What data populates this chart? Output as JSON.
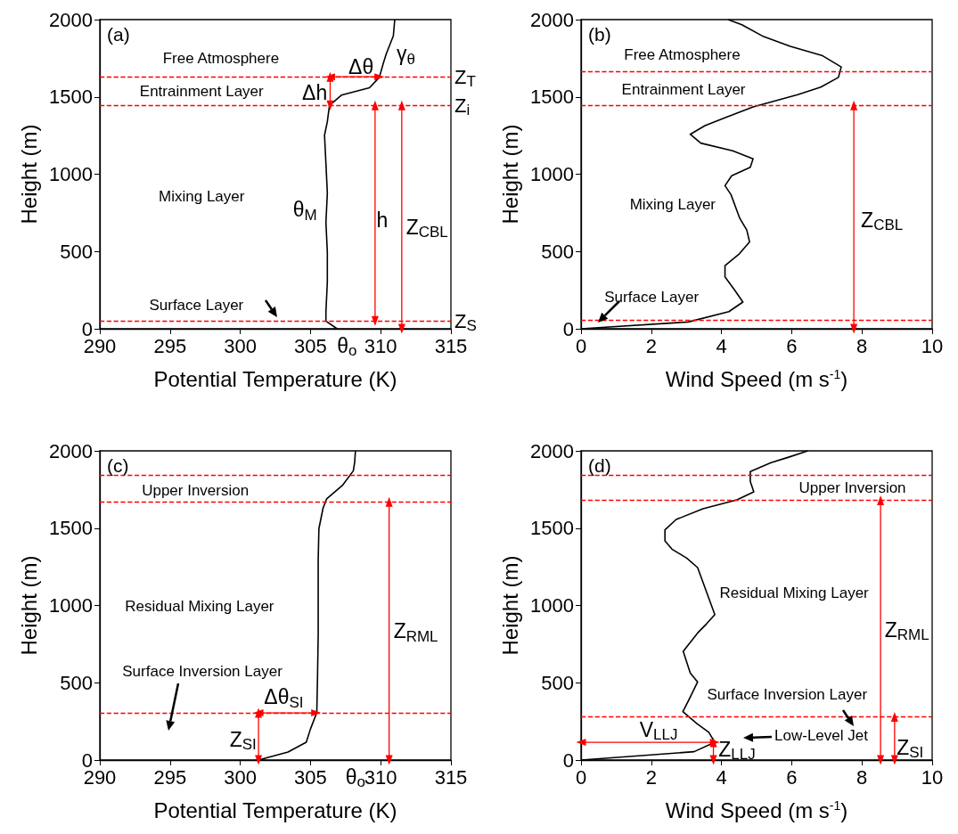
{
  "chart_data": [
    {
      "type": "line",
      "xlabel": "Potential Temperature (K)",
      "ylabel": "Height (m)",
      "xlim": [
        290,
        315
      ],
      "xticks": [
        290,
        295,
        300,
        305,
        310,
        315
      ],
      "ylim": [
        0,
        2000
      ],
      "yticks": [
        0,
        500,
        1000,
        1500,
        2000
      ],
      "series": [
        {
          "color": "#000000",
          "x": [
            311.0,
            310.9,
            310.4,
            310.2,
            309.9,
            309.2,
            307.2,
            306.35,
            306.2,
            306.0,
            306.1,
            306.2,
            306.1,
            306.2,
            306.2,
            306.1,
            306.1,
            306.9
          ],
          "values": [
            2000,
            1895,
            1780,
            1722,
            1626,
            1559,
            1511,
            1444,
            1339,
            1252,
            1070,
            878,
            687,
            495,
            303,
            111,
            50,
            0
          ]
        },
        {
          "color": "#ff0000",
          "marker": "triangle",
          "x": [
            306.4,
            309.9
          ],
          "values": [
            1630,
            1630
          ]
        },
        {
          "color": "#ff0000",
          "marker": "triangle",
          "x": [
            306.4,
            306.4
          ],
          "values": [
            1445,
            1630
          ]
        },
        {
          "color": "#ff0000",
          "marker": "triangle",
          "x": [
            309.6,
            309.6
          ],
          "values": [
            50,
            1445
          ]
        },
        {
          "color": "#ff0000",
          "marker": "triangle",
          "x": [
            311.5,
            311.5
          ],
          "values": [
            0,
            1445
          ]
        }
      ],
      "ref_lines": [
        {
          "axis": "y",
          "value": 1630,
          "label": "Z$_{T}$",
          "color": "#ff0000",
          "line_style": "dashed"
        },
        {
          "axis": "y",
          "value": 1445,
          "label": "Z$_{i}$",
          "color": "#ff0000",
          "line_style": "dashed"
        },
        {
          "axis": "y",
          "value": 50,
          "label": "Z$_{S}$",
          "color": "#ff0000",
          "line_style": "dashed"
        }
      ],
      "annotations": [
        "(a)",
        "Free Atmosphere",
        "Entrainment Layer",
        "Mixing Layer",
        "Surface Layer",
        "γ$_{θ}$",
        "Δθ",
        "Δh",
        "θ$_{M}$",
        "h",
        "Z$_{CBL}$",
        "θ$_{o}$"
      ]
    },
    {
      "type": "line",
      "xlabel": "Wind Speed (m s$^{-1}$)",
      "ylabel": "Height (m)",
      "xlim": [
        0,
        10
      ],
      "xticks": [
        0,
        2,
        4,
        6,
        8,
        10
      ],
      "ylim": [
        0,
        2000
      ],
      "yticks": [
        0,
        500,
        1000,
        1500,
        2000
      ],
      "series": [
        {
          "color": "#000000",
          "x": [
            4.19,
            4.58,
            5.2,
            5.96,
            6.88,
            7.41,
            7.33,
            6.83,
            6.17,
            4.9,
            4.06,
            3.53,
            3.11,
            3.41,
            4.32,
            4.9,
            4.82,
            4.29,
            4.1,
            4.27,
            4.52,
            4.72,
            4.8,
            4.51,
            4.1,
            4.1,
            4.36,
            4.61,
            4.21,
            3.05,
            0
          ],
          "values": [
            2000,
            1967,
            1890,
            1827,
            1766,
            1694,
            1626,
            1563,
            1515,
            1435,
            1362,
            1314,
            1258,
            1201,
            1151,
            1099,
            1045,
            990,
            926,
            868,
            715,
            639,
            562,
            485,
            409,
            336,
            255,
            173,
            111,
            44,
            0
          ]
        },
        {
          "color": "#ff0000",
          "marker": "triangle",
          "x": [
            7.77,
            7.77
          ],
          "values": [
            0,
            1445
          ]
        }
      ],
      "ref_lines": [
        {
          "axis": "y",
          "value": 1665,
          "color": "#ff0000",
          "line_style": "dashed"
        },
        {
          "axis": "y",
          "value": 1445,
          "color": "#ff0000",
          "line_style": "dashed"
        },
        {
          "axis": "y",
          "value": 55,
          "color": "#ff0000",
          "line_style": "dashed"
        }
      ],
      "annotations": [
        "(b)",
        "Free Atmosphere",
        "Entrainment Layer",
        "Mixing Layer",
        "Surface Layer",
        "Z$_{CBL}$"
      ]
    },
    {
      "type": "line",
      "xlabel": "Potential Temperature (K)",
      "ylabel": "Height (m)",
      "xlim": [
        290,
        315
      ],
      "xticks": [
        290,
        295,
        300,
        305,
        310,
        315
      ],
      "ylim": [
        0,
        2000
      ],
      "yticks": [
        0,
        500,
        1000,
        1500,
        2000
      ],
      "series": [
        {
          "color": "#000000",
          "x": [
            308.2,
            308.15,
            308.05,
            307.3,
            306.15,
            305.9,
            305.6,
            305.55,
            305.55,
            305.55,
            305.5,
            305.45,
            305.0,
            304.7,
            303.4,
            301.3
          ],
          "values": [
            2000,
            1929,
            1871,
            1779,
            1689,
            1631,
            1497,
            1296,
            1104,
            816,
            528,
            307,
            201,
            115,
            52,
            0
          ]
        },
        {
          "color": "#ff0000",
          "marker": "triangle",
          "x": [
            301.3,
            305.4
          ],
          "values": [
            305,
            305
          ]
        },
        {
          "color": "#ff0000",
          "marker": "triangle",
          "x": [
            301.3,
            301.3
          ],
          "values": [
            0,
            305
          ]
        },
        {
          "color": "#ff0000",
          "marker": "triangle",
          "x": [
            310.6,
            310.6
          ],
          "values": [
            0,
            1670
          ]
        }
      ],
      "ref_lines": [
        {
          "axis": "y",
          "value": 1845,
          "color": "#ff0000",
          "line_style": "dashed"
        },
        {
          "axis": "y",
          "value": 1670,
          "color": "#ff0000",
          "line_style": "dashed"
        },
        {
          "axis": "y",
          "value": 305,
          "color": "#ff0000",
          "line_style": "dashed"
        }
      ],
      "annotations": [
        "(c)",
        "Upper Inversion",
        "Residual Mixing Layer",
        "Surface Inversion Layer",
        "Δθ$_{SI}$",
        "Z$_{SI}$",
        "Z$_{RML}$",
        "θ$_{o}$"
      ]
    },
    {
      "type": "line",
      "xlabel": "Wind Speed (m s$^{-1}$)",
      "ylabel": "Height (m)",
      "xlim": [
        0,
        10
      ],
      "xticks": [
        0,
        2,
        4,
        6,
        8,
        10
      ],
      "ylim": [
        0,
        2000
      ],
      "yticks": [
        0,
        500,
        1000,
        1500,
        2000
      ],
      "series": [
        {
          "color": "#000000",
          "x": [
            6.46,
            5.87,
            5.41,
            4.82,
            4.82,
            4.92,
            4.44,
            3.47,
            2.71,
            2.39,
            2.39,
            2.59,
            3.01,
            3.32,
            3.81,
            3.57,
            3.32,
            2.91,
            3.11,
            3.32,
            3.05,
            2.9,
            3.3,
            3.64,
            3.81,
            3.22,
            0
          ],
          "values": [
            2000,
            1956,
            1923,
            1866,
            1802,
            1735,
            1683,
            1625,
            1556,
            1489,
            1418,
            1364,
            1306,
            1245,
            941,
            880,
            822,
            703,
            563,
            505,
            380,
            313,
            236,
            179,
            115,
            54,
            0
          ]
        },
        {
          "color": "#ff0000",
          "marker": "triangle",
          "x": [
            0,
            3.81
          ],
          "values": [
            115,
            115
          ]
        },
        {
          "color": "#ff0000",
          "marker": "triangle",
          "x": [
            3.77,
            3.77
          ],
          "values": [
            0,
            115
          ]
        },
        {
          "color": "#ff0000",
          "marker": "triangle",
          "x": [
            8.53,
            8.53
          ],
          "values": [
            0,
            1680
          ]
        },
        {
          "color": "#ff0000",
          "marker": "triangle",
          "x": [
            8.93,
            8.93
          ],
          "values": [
            0,
            280
          ]
        }
      ],
      "ref_lines": [
        {
          "axis": "y",
          "value": 1845,
          "color": "#ff0000",
          "line_style": "dashed"
        },
        {
          "axis": "y",
          "value": 1680,
          "color": "#ff0000",
          "line_style": "dashed"
        },
        {
          "axis": "y",
          "value": 280,
          "color": "#ff0000",
          "line_style": "dashed"
        }
      ],
      "annotations": [
        "(d)",
        "Upper Inversion",
        "Residual Mixing Layer",
        "Surface Inversion Layer",
        "Low-Level Jet",
        "V$_{LLJ}$",
        "Z$_{LLJ}$",
        "Z$_{RML}$",
        "Z$_{SI}$"
      ]
    }
  ]
}
